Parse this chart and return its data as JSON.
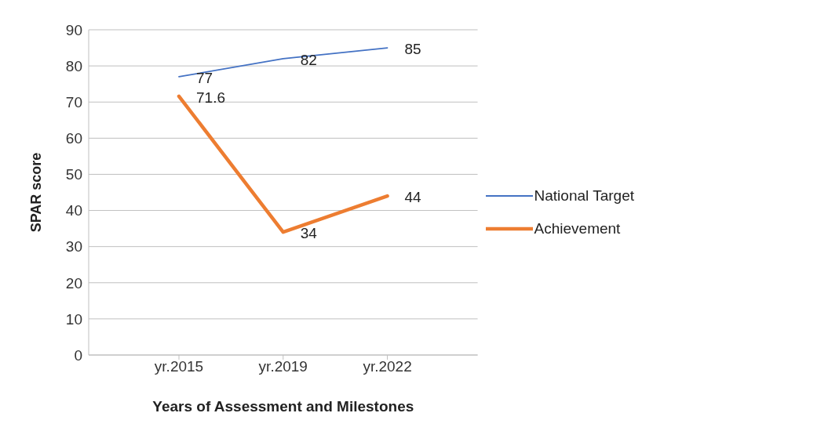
{
  "chart_data": {
    "type": "line",
    "xlabel": "Years of Assessment and Milestones",
    "ylabel": "SPAR score",
    "categories": [
      "yr.2015",
      "yr.2019",
      "yr.2022"
    ],
    "series": [
      {
        "name": "National Target",
        "color": "#4472c4",
        "values": [
          77,
          82,
          85
        ]
      },
      {
        "name": "Achievement",
        "color": "#ed7d31",
        "values": [
          71.6,
          34,
          44
        ]
      }
    ],
    "ylim": [
      0,
      90
    ],
    "yticks": [
      0,
      10,
      20,
      30,
      40,
      50,
      60,
      70,
      80,
      90
    ],
    "grid": "y",
    "legend": "right",
    "data_labels": true,
    "marker": "none",
    "line_style": "solid"
  }
}
